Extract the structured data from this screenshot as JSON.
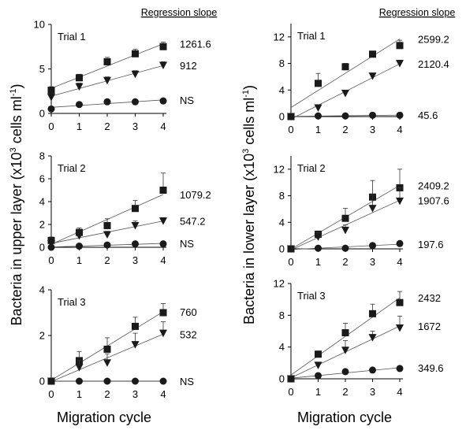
{
  "chart_data": [
    {
      "type": "scatter",
      "panel": "upper-trial-1",
      "trial_label": "Trial 1",
      "x": [
        0,
        1,
        2,
        3,
        4
      ],
      "ylim": [
        0,
        10
      ],
      "yticks": [
        0,
        5,
        10
      ],
      "series": [
        {
          "marker": "square",
          "values": [
            2.6,
            4.0,
            5.8,
            6.7,
            7.5
          ],
          "err": [
            0.4,
            0.4,
            0.5,
            0.5,
            0.5
          ],
          "slope_label": "1261.6"
        },
        {
          "marker": "triangle-down",
          "values": [
            1.8,
            3.0,
            3.7,
            4.4,
            5.4
          ],
          "err": [
            0.4,
            0.4,
            0.4,
            0.4,
            0.4
          ],
          "slope_label": "912"
        },
        {
          "marker": "circle",
          "values": [
            0.5,
            1.0,
            1.3,
            1.3,
            1.4
          ],
          "err": [
            0,
            0,
            0,
            0,
            0
          ],
          "slope_label": "NS"
        }
      ]
    },
    {
      "type": "scatter",
      "panel": "upper-trial-2",
      "trial_label": "Trial 2",
      "x": [
        0,
        1,
        2,
        3,
        4
      ],
      "ylim": [
        0,
        8
      ],
      "yticks": [
        0,
        2,
        4,
        6,
        8
      ],
      "series": [
        {
          "marker": "square",
          "values": [
            0.6,
            1.3,
            1.9,
            3.4,
            5.0
          ],
          "err": [
            0.3,
            0.4,
            0.6,
            0.7,
            1.5
          ],
          "slope_label": "1079.2"
        },
        {
          "marker": "triangle-down",
          "values": [
            0.3,
            1.0,
            1.1,
            1.9,
            2.3
          ],
          "err": [
            0.2,
            0.3,
            0.3,
            0.4,
            0.3
          ],
          "slope_label": "547.2"
        },
        {
          "marker": "circle",
          "values": [
            0.0,
            0.1,
            0.2,
            0.3,
            0.3
          ],
          "err": [
            0,
            0,
            0,
            0,
            0
          ],
          "slope_label": "NS"
        }
      ]
    },
    {
      "type": "scatter",
      "panel": "upper-trial-3",
      "trial_label": "Trial 3",
      "x": [
        0,
        1,
        2,
        3,
        4
      ],
      "ylim": [
        0,
        4
      ],
      "yticks": [
        0,
        2,
        4
      ],
      "series": [
        {
          "marker": "square",
          "values": [
            0.0,
            0.9,
            1.4,
            2.4,
            3.0
          ],
          "err": [
            0,
            0.4,
            0.5,
            0.4,
            0.4
          ],
          "slope_label": "760"
        },
        {
          "marker": "triangle-down",
          "values": [
            0.0,
            0.6,
            0.8,
            1.6,
            2.1
          ],
          "err": [
            0,
            0.3,
            0.4,
            0.5,
            0.5
          ],
          "slope_label": "532"
        },
        {
          "marker": "circle",
          "values": [
            0.0,
            0.0,
            0.0,
            0.0,
            0.0
          ],
          "err": [
            0,
            0,
            0,
            0,
            0
          ],
          "slope_label": "NS"
        }
      ]
    },
    {
      "type": "scatter",
      "panel": "lower-trial-1",
      "trial_label": "Trial 1",
      "x": [
        0,
        1,
        2,
        3,
        4
      ],
      "ylim": [
        0,
        14
      ],
      "yticks": [
        0,
        4,
        8,
        12
      ],
      "series": [
        {
          "marker": "square",
          "values": [
            0.0,
            5.0,
            7.5,
            9.4,
            10.7
          ],
          "err": [
            0,
            1.5,
            0.5,
            0.4,
            0.8
          ],
          "slope_label": "2599.2"
        },
        {
          "marker": "triangle-down",
          "values": [
            0.0,
            1.3,
            3.5,
            6.1,
            8.0
          ],
          "err": [
            0,
            0.4,
            0.4,
            0.4,
            0.5
          ],
          "slope_label": "2120.4"
        },
        {
          "marker": "circle",
          "values": [
            0.0,
            0.1,
            0.1,
            0.2,
            0.2
          ],
          "err": [
            0,
            0,
            0,
            0,
            0
          ],
          "slope_label": "45.6"
        }
      ]
    },
    {
      "type": "scatter",
      "panel": "lower-trial-2",
      "trial_label": "Trial 2",
      "x": [
        0,
        1,
        2,
        3,
        4
      ],
      "ylim": [
        0,
        14
      ],
      "yticks": [
        0,
        4,
        8,
        12
      ],
      "series": [
        {
          "marker": "square",
          "values": [
            0.0,
            2.2,
            4.6,
            7.8,
            9.2
          ],
          "err": [
            0,
            0.5,
            1.5,
            2.5,
            2.8
          ],
          "slope_label": "2409.2"
        },
        {
          "marker": "triangle-down",
          "values": [
            0.0,
            1.8,
            2.8,
            6.1,
            7.2
          ],
          "err": [
            0,
            0.6,
            0.8,
            2.0,
            2.0
          ],
          "slope_label": "1907.6"
        },
        {
          "marker": "circle",
          "values": [
            0.0,
            0.1,
            0.1,
            0.5,
            0.8
          ],
          "err": [
            0,
            0,
            0,
            0.2,
            0.3
          ],
          "slope_label": "197.6"
        }
      ]
    },
    {
      "type": "scatter",
      "panel": "lower-trial-3",
      "trial_label": "Trial 3",
      "x": [
        0,
        1,
        2,
        3,
        4
      ],
      "ylim": [
        0,
        12
      ],
      "yticks": [
        0,
        4,
        8,
        12
      ],
      "series": [
        {
          "marker": "square",
          "values": [
            0.0,
            3.1,
            5.8,
            8.2,
            9.6
          ],
          "err": [
            0,
            0.4,
            1.2,
            1.2,
            1.4
          ],
          "slope_label": "2432"
        },
        {
          "marker": "triangle-down",
          "values": [
            0.0,
            1.7,
            3.6,
            5.2,
            6.4
          ],
          "err": [
            0,
            0.4,
            1.2,
            0.8,
            1.5
          ],
          "slope_label": "1672"
        },
        {
          "marker": "circle",
          "values": [
            0.0,
            0.4,
            0.9,
            1.1,
            1.3
          ],
          "err": [
            0,
            0,
            0.2,
            0.2,
            0.3
          ],
          "slope_label": "349.6"
        }
      ]
    }
  ],
  "labels": {
    "slope_header": "Regression slope",
    "xlabel": "Migration cycle",
    "ylabel_upper_main": "Bacteria in upper layer (x10",
    "ylabel_lower_main": "Bacteria in lower layer (x10",
    "ylabel_sup3": "3",
    "ylabel_mid": " cells ml",
    "ylabel_sup_neg1": "-1",
    "ylabel_end": ")"
  }
}
